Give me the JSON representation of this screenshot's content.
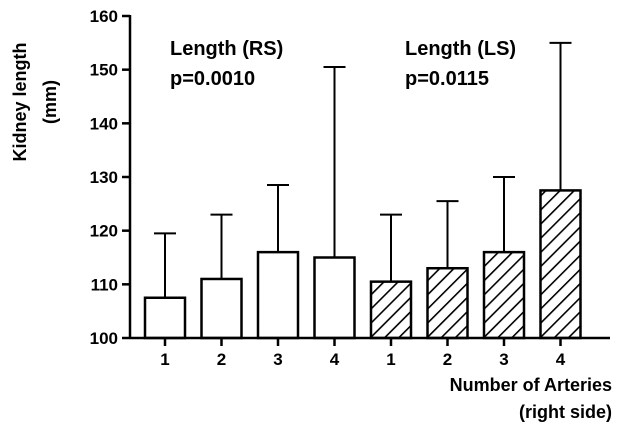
{
  "chart_data": {
    "type": "bar",
    "ylabel_line1": "Kidney length",
    "ylabel_line2": "(mm)",
    "xlabel_line1": "Number of Arteries",
    "xlabel_line2": "(right side)",
    "ylim": [
      100,
      160
    ],
    "yticks": [
      100,
      110,
      120,
      130,
      140,
      150,
      160
    ],
    "grid": false,
    "categories": [
      "1",
      "2",
      "3",
      "4",
      "1",
      "2",
      "3",
      "4"
    ],
    "series": [
      {
        "name": "Length (RS)",
        "pattern": "open",
        "values": [
          107.5,
          111,
          116,
          115,
          null,
          null,
          null,
          null
        ],
        "error_upper": [
          119.5,
          123,
          128.5,
          150.5,
          null,
          null,
          null,
          null
        ]
      },
      {
        "name": "Length (LS)",
        "pattern": "hatched",
        "values": [
          null,
          null,
          null,
          null,
          110.5,
          113,
          116,
          127.5
        ],
        "error_upper": [
          null,
          null,
          null,
          null,
          123,
          125.5,
          130,
          155
        ]
      }
    ],
    "annotations": [
      {
        "line1": "Length (RS)",
        "line2": "p=0.0010"
      },
      {
        "line1": "Length (LS)",
        "line2": "p=0.0115"
      }
    ],
    "colors": {
      "bar_stroke": "#000000",
      "bar_fill": "#ffffff",
      "hatch": "#000000"
    }
  }
}
